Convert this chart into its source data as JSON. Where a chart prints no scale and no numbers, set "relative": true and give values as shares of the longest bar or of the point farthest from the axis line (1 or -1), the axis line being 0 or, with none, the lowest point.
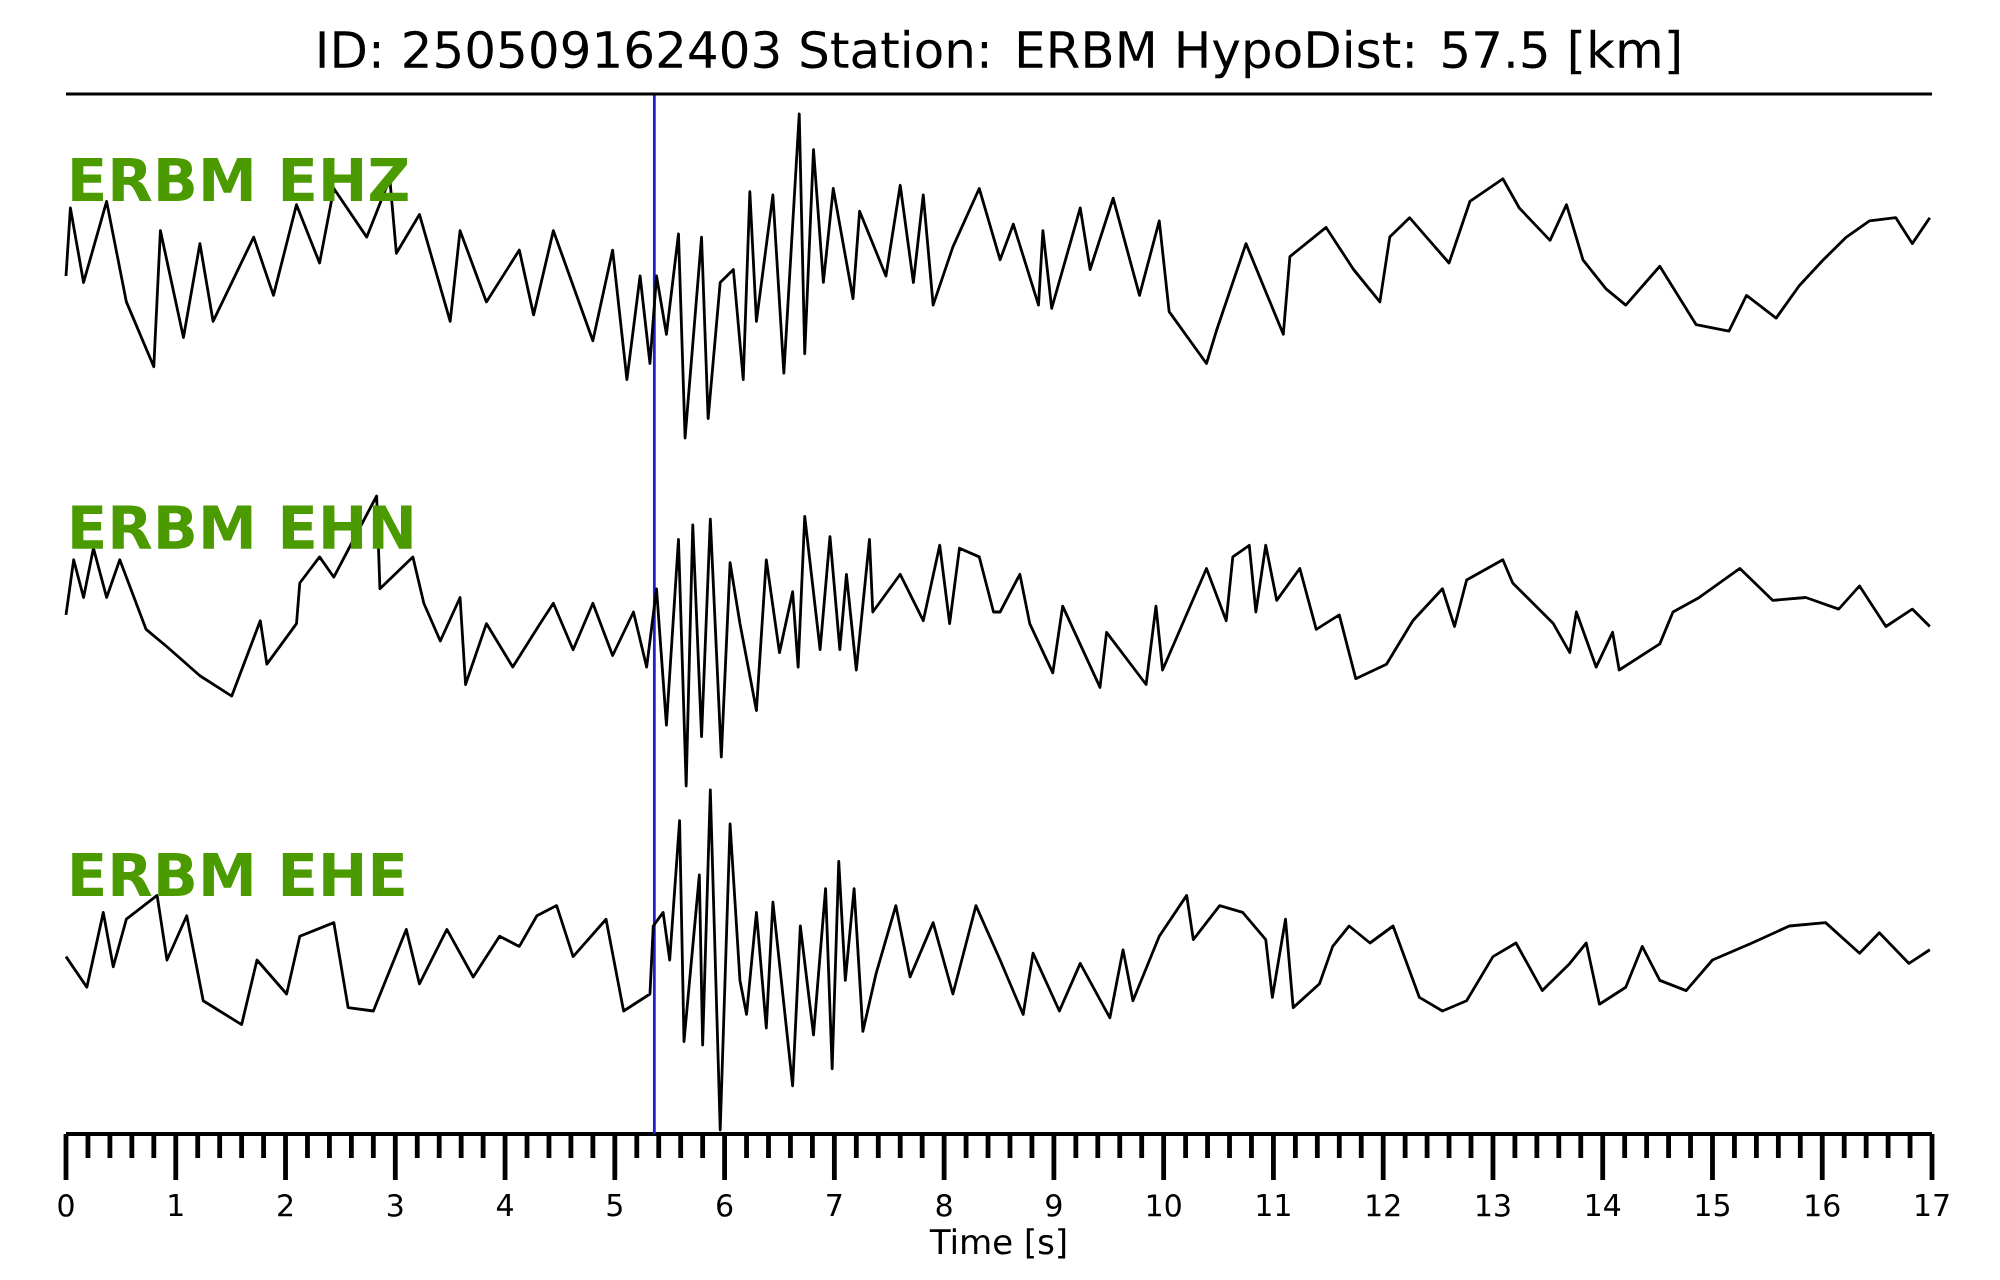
{
  "chart_data": [
    {
      "type": "line",
      "title": "ID: 250509162403   Station: ERBM   HypoDist:    57.5 [km]",
      "relative": true,
      "xlim": [
        0,
        17
      ],
      "tick_labels": false,
      "series": [
        {
          "name": "ERBM EHZ",
          "color": "#000000",
          "x": [
            0,
            0.04,
            0.16,
            0.37,
            0.55,
            0.8,
            0.86,
            1.07,
            1.22,
            1.34,
            1.71,
            1.89,
            2.1,
            2.31,
            2.44,
            2.74,
            2.95,
            3.01,
            3.22,
            3.5,
            3.59,
            3.83,
            4.13,
            4.26,
            4.44,
            4.8,
            4.98,
            5.11,
            5.23,
            5.32,
            5.38,
            5.47,
            5.58,
            5.64,
            5.79,
            5.85,
            5.96,
            6.08,
            6.17,
            6.23,
            6.29,
            6.44,
            6.54,
            6.68,
            6.73,
            6.81,
            6.9,
            6.99,
            7.17,
            7.23,
            7.47,
            7.6,
            7.72,
            7.81,
            7.9,
            8.08,
            8.32,
            8.51,
            8.63,
            8.86,
            8.9,
            8.98,
            9.24,
            9.33,
            9.54,
            9.78,
            9.96,
            10.05,
            10.39,
            10.48,
            10.75,
            11.09,
            11.15,
            11.48,
            11.73,
            11.97,
            12.06,
            12.24,
            12.6,
            12.79,
            13.09,
            13.24,
            13.52,
            13.67,
            13.82,
            14.03,
            14.21,
            14.52,
            14.85,
            15.15,
            15.31,
            15.58,
            15.79,
            16.01,
            16.22,
            16.43,
            16.67,
            16.82,
            16.98
          ],
          "values": [
            0.5,
            0.71,
            0.48,
            0.73,
            0.42,
            0.22,
            0.64,
            0.31,
            0.6,
            0.36,
            0.62,
            0.44,
            0.72,
            0.54,
            0.77,
            0.62,
            0.8,
            0.57,
            0.69,
            0.36,
            0.64,
            0.42,
            0.58,
            0.38,
            0.64,
            0.3,
            0.58,
            0.18,
            0.5,
            0.23,
            0.5,
            0.32,
            0.63,
            0,
            0.62,
            0.06,
            0.48,
            0.52,
            0.18,
            0.76,
            0.36,
            0.75,
            0.2,
            1,
            0.26,
            0.89,
            0.48,
            0.77,
            0.43,
            0.7,
            0.5,
            0.78,
            0.48,
            0.75,
            0.41,
            0.59,
            0.77,
            0.55,
            0.66,
            0.41,
            0.64,
            0.4,
            0.71,
            0.52,
            0.74,
            0.44,
            0.67,
            0.39,
            0.23,
            0.33,
            0.6,
            0.32,
            0.56,
            0.65,
            0.52,
            0.42,
            0.62,
            0.68,
            0.54,
            0.73,
            0.8,
            0.71,
            0.61,
            0.72,
            0.55,
            0.46,
            0.41,
            0.53,
            0.35,
            0.33,
            0.44,
            0.37,
            0.47,
            0.55,
            0.62,
            0.67,
            0.68,
            0.6,
            0.68
          ]
        }
      ],
      "ref_lines": [
        {
          "axis": "x",
          "value": 5.36,
          "color": "#2020cc"
        }
      ]
    },
    {
      "type": "line",
      "relative": true,
      "xlim": [
        0,
        17
      ],
      "tick_labels": false,
      "series": [
        {
          "name": "ERBM EHN",
          "color": "#000000",
          "x": [
            0,
            0.07,
            0.16,
            0.25,
            0.37,
            0.49,
            0.73,
            0.92,
            1.22,
            1.51,
            1.77,
            1.83,
            2.1,
            2.13,
            2.31,
            2.44,
            2.62,
            2.83,
            2.86,
            3.16,
            3.26,
            3.41,
            3.59,
            3.64,
            3.83,
            4.07,
            4.32,
            4.44,
            4.62,
            4.8,
            4.98,
            5.17,
            5.29,
            5.38,
            5.47,
            5.58,
            5.65,
            5.71,
            5.79,
            5.87,
            5.97,
            6.05,
            6.14,
            6.29,
            6.38,
            6.5,
            6.62,
            6.67,
            6.73,
            6.87,
            6.96,
            7.05,
            7.11,
            7.2,
            7.32,
            7.35,
            7.6,
            7.81,
            7.96,
            8.05,
            8.14,
            8.32,
            8.45,
            8.51,
            8.69,
            8.78,
            8.99,
            9.08,
            9.42,
            9.48,
            9.84,
            9.93,
            9.99,
            10.39,
            10.57,
            10.63,
            10.78,
            10.84,
            10.93,
            11.03,
            11.24,
            11.39,
            11.6,
            11.75,
            12.03,
            12.27,
            12.54,
            12.65,
            12.76,
            13.09,
            13.18,
            13.55,
            13.7,
            13.76,
            13.94,
            14.09,
            14.15,
            14.52,
            14.64,
            14.88,
            15.25,
            15.55,
            15.85,
            16.15,
            16.34,
            16.58,
            16.82,
            16.98
          ],
          "values": [
            0.59,
            0.78,
            0.65,
            0.82,
            0.65,
            0.78,
            0.54,
            0.48,
            0.38,
            0.31,
            0.57,
            0.42,
            0.56,
            0.7,
            0.79,
            0.72,
            0.85,
            1,
            0.68,
            0.79,
            0.63,
            0.5,
            0.65,
            0.35,
            0.56,
            0.41,
            0.56,
            0.63,
            0.47,
            0.63,
            0.45,
            0.6,
            0.41,
            0.68,
            0.21,
            0.85,
            0,
            0.9,
            0.17,
            0.92,
            0.1,
            0.77,
            0.56,
            0.26,
            0.78,
            0.46,
            0.67,
            0.41,
            0.93,
            0.47,
            0.86,
            0.47,
            0.73,
            0.4,
            0.85,
            0.6,
            0.73,
            0.57,
            0.83,
            0.56,
            0.82,
            0.79,
            0.6,
            0.6,
            0.73,
            0.56,
            0.39,
            0.62,
            0.34,
            0.53,
            0.35,
            0.62,
            0.4,
            0.75,
            0.57,
            0.79,
            0.83,
            0.6,
            0.83,
            0.64,
            0.75,
            0.54,
            0.59,
            0.37,
            0.42,
            0.57,
            0.68,
            0.55,
            0.71,
            0.78,
            0.7,
            0.56,
            0.46,
            0.6,
            0.41,
            0.53,
            0.4,
            0.49,
            0.6,
            0.65,
            0.75,
            0.64,
            0.65,
            0.61,
            0.69,
            0.55,
            0.61,
            0.55
          ]
        }
      ],
      "ref_lines": [
        {
          "axis": "x",
          "value": 5.36,
          "color": "#2020cc"
        }
      ]
    },
    {
      "type": "line",
      "xlabel": "Time [s]",
      "relative": true,
      "xlim": [
        0,
        17
      ],
      "xticks": [
        0,
        {
          "value": 0.2,
          "label": null
        },
        {
          "value": 0.4,
          "label": null
        },
        {
          "value": 0.6,
          "label": null
        },
        {
          "value": 0.8,
          "label": null
        },
        1,
        {
          "value": 1.2,
          "label": null
        },
        {
          "value": 1.4,
          "label": null
        },
        {
          "value": 1.6,
          "label": null
        },
        {
          "value": 1.8,
          "label": null
        },
        2,
        {
          "value": 2.2,
          "label": null
        },
        {
          "value": 2.4,
          "label": null
        },
        {
          "value": 2.6,
          "label": null
        },
        {
          "value": 2.8,
          "label": null
        },
        3,
        {
          "value": 3.2,
          "label": null
        },
        {
          "value": 3.4,
          "label": null
        },
        {
          "value": 3.6,
          "label": null
        },
        {
          "value": 3.8,
          "label": null
        },
        4,
        {
          "value": 4.2,
          "label": null
        },
        {
          "value": 4.4,
          "label": null
        },
        {
          "value": 4.6,
          "label": null
        },
        {
          "value": 4.8,
          "label": null
        },
        5,
        {
          "value": 5.2,
          "label": null
        },
        {
          "value": 5.4,
          "label": null
        },
        {
          "value": 5.6,
          "label": null
        },
        {
          "value": 5.8,
          "label": null
        },
        6,
        {
          "value": 6.2,
          "label": null
        },
        {
          "value": 6.4,
          "label": null
        },
        {
          "value": 6.6,
          "label": null
        },
        {
          "value": 6.8,
          "label": null
        },
        7,
        {
          "value": 7.2,
          "label": null
        },
        {
          "value": 7.4,
          "label": null
        },
        {
          "value": 7.6,
          "label": null
        },
        {
          "value": 7.8,
          "label": null
        },
        8,
        {
          "value": 8.2,
          "label": null
        },
        {
          "value": 8.4,
          "label": null
        },
        {
          "value": 8.6,
          "label": null
        },
        {
          "value": 8.8,
          "label": null
        },
        9,
        {
          "value": 9.2,
          "label": null
        },
        {
          "value": 9.4,
          "label": null
        },
        {
          "value": 9.6,
          "label": null
        },
        {
          "value": 9.8,
          "label": null
        },
        10,
        {
          "value": 10.2,
          "label": null
        },
        {
          "value": 10.4,
          "label": null
        },
        {
          "value": 10.6,
          "label": null
        },
        {
          "value": 10.8,
          "label": null
        },
        11,
        {
          "value": 11.2,
          "label": null
        },
        {
          "value": 11.4,
          "label": null
        },
        {
          "value": 11.6,
          "label": null
        },
        {
          "value": 11.8,
          "label": null
        },
        12,
        {
          "value": 12.2,
          "label": null
        },
        {
          "value": 12.4,
          "label": null
        },
        {
          "value": 12.6,
          "label": null
        },
        {
          "value": 12.8,
          "label": null
        },
        13,
        {
          "value": 13.2,
          "label": null
        },
        {
          "value": 13.4,
          "label": null
        },
        {
          "value": 13.6,
          "label": null
        },
        {
          "value": 13.8,
          "label": null
        },
        14,
        {
          "value": 14.2,
          "label": null
        },
        {
          "value": 14.4,
          "label": null
        },
        {
          "value": 14.6,
          "label": null
        },
        {
          "value": 14.8,
          "label": null
        },
        15,
        {
          "value": 15.2,
          "label": null
        },
        {
          "value": 15.4,
          "label": null
        },
        {
          "value": 15.6,
          "label": null
        },
        {
          "value": 15.8,
          "label": null
        },
        16,
        {
          "value": 16.2,
          "label": null
        },
        {
          "value": 16.4,
          "label": null
        },
        {
          "value": 16.6,
          "label": null
        },
        {
          "value": 16.8,
          "label": null
        },
        17
      ],
      "series": [
        {
          "name": "ERBM EHE",
          "color": "#000000",
          "x": [
            0,
            0.19,
            0.34,
            0.43,
            0.55,
            0.83,
            0.92,
            1.1,
            1.25,
            1.4,
            1.6,
            1.74,
            2.01,
            2.13,
            2.44,
            2.57,
            2.8,
            3.1,
            3.22,
            3.47,
            3.71,
            3.95,
            4.13,
            4.29,
            4.47,
            4.62,
            4.92,
            5.08,
            5.32,
            5.35,
            5.44,
            5.5,
            5.59,
            5.63,
            5.77,
            5.8,
            5.87,
            5.96,
            6.05,
            6.14,
            6.2,
            6.29,
            6.38,
            6.44,
            6.62,
            6.69,
            6.81,
            6.92,
            6.98,
            7.04,
            7.1,
            7.18,
            7.26,
            7.38,
            7.56,
            7.69,
            7.9,
            8.08,
            8.29,
            8.51,
            8.72,
            8.81,
            9.05,
            9.24,
            9.51,
            9.63,
            9.72,
            9.96,
            10.21,
            10.27,
            10.51,
            10.72,
            10.93,
            10.99,
            11.11,
            11.18,
            11.42,
            11.54,
            11.69,
            11.88,
            12.09,
            12.33,
            12.54,
            12.76,
            13,
            13.21,
            13.45,
            13.7,
            13.85,
            13.97,
            14.21,
            14.36,
            14.52,
            14.76,
            15,
            15.36,
            15.7,
            16.03,
            16.34,
            16.52,
            16.79,
            16.98
          ],
          "values": [
            0.51,
            0.42,
            0.64,
            0.48,
            0.62,
            0.69,
            0.5,
            0.63,
            0.38,
            0.35,
            0.31,
            0.5,
            0.4,
            0.57,
            0.61,
            0.36,
            0.35,
            0.59,
            0.43,
            0.59,
            0.45,
            0.57,
            0.54,
            0.63,
            0.66,
            0.51,
            0.62,
            0.35,
            0.4,
            0.6,
            0.64,
            0.5,
            0.91,
            0.26,
            0.75,
            0.25,
            1,
            0,
            0.9,
            0.44,
            0.34,
            0.64,
            0.3,
            0.67,
            0.13,
            0.6,
            0.28,
            0.71,
            0.18,
            0.79,
            0.44,
            0.71,
            0.29,
            0.46,
            0.66,
            0.45,
            0.61,
            0.4,
            0.66,
            0.5,
            0.34,
            0.52,
            0.35,
            0.49,
            0.33,
            0.53,
            0.38,
            0.57,
            0.69,
            0.56,
            0.66,
            0.64,
            0.56,
            0.39,
            0.62,
            0.36,
            0.43,
            0.54,
            0.6,
            0.55,
            0.6,
            0.39,
            0.35,
            0.38,
            0.51,
            0.55,
            0.41,
            0.49,
            0.55,
            0.37,
            0.42,
            0.54,
            0.44,
            0.41,
            0.5,
            0.55,
            0.6,
            0.61,
            0.52,
            0.58,
            0.49,
            0.53
          ]
        }
      ],
      "ref_lines": [
        {
          "axis": "x",
          "value": 5.36,
          "color": "#2020cc"
        }
      ]
    }
  ]
}
